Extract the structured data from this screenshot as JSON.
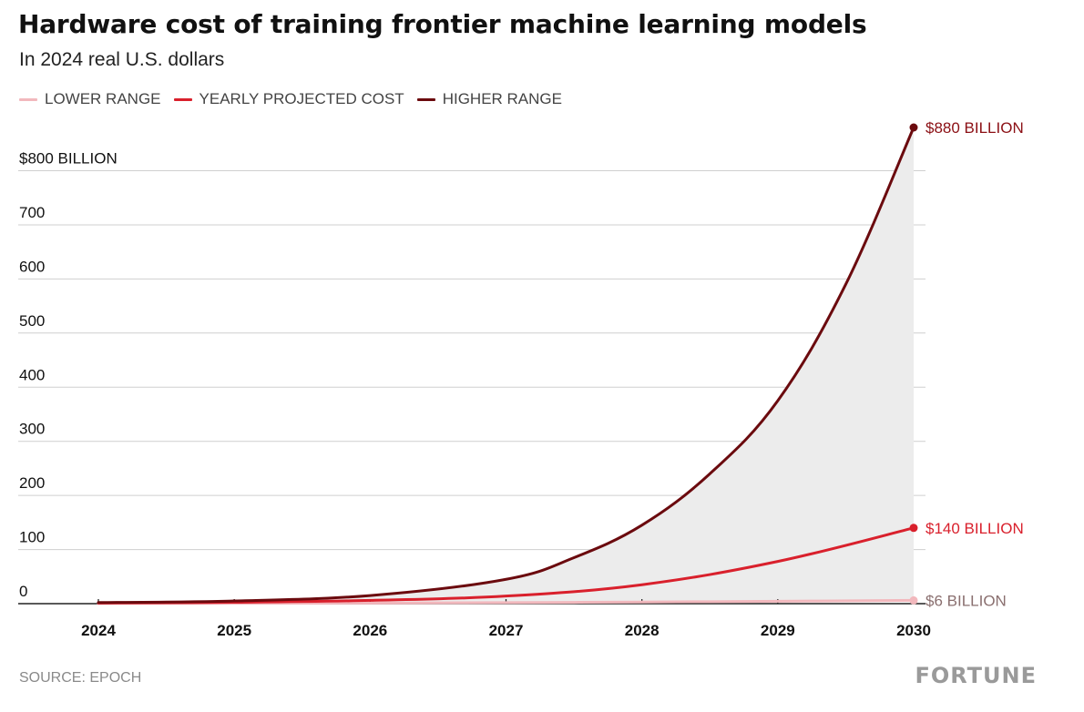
{
  "header": {
    "title": "Hardware cost of training frontier machine learning models",
    "subtitle": "In 2024 real U.S. dollars"
  },
  "legend": [
    {
      "label": "LOWER RANGE",
      "color": "#f2b8bd"
    },
    {
      "label": "YEARLY PROJECTED COST",
      "color": "#d9202c"
    },
    {
      "label": "HIGHER RANGE",
      "color": "#6b0a0e"
    }
  ],
  "chart_data": {
    "type": "line",
    "title": "Hardware cost of training frontier machine learning models",
    "subtitle": "In 2024 real U.S. dollars",
    "xlabel": "",
    "ylabel": "",
    "x": [
      2024,
      2025,
      2026,
      2027,
      2028,
      2029,
      2030
    ],
    "xlim": [
      2023.4,
      2030.1
    ],
    "ylim": [
      0,
      880
    ],
    "yticks": [
      0,
      100,
      200,
      300,
      400,
      500,
      600,
      700,
      800
    ],
    "ytick_labels": [
      "0",
      "100",
      "200",
      "300",
      "400",
      "500",
      "600",
      "700",
      "$800 BILLION"
    ],
    "xtick_labels": [
      "2024",
      "2025",
      "2026",
      "2027",
      "2028",
      "2029",
      "2030"
    ],
    "grid": true,
    "series": [
      {
        "name": "LOWER RANGE",
        "color": "#f2b8bd",
        "x": [
          2024,
          2025,
          2026,
          2027,
          2028,
          2029,
          2030
        ],
        "values": [
          0.3,
          0.6,
          1.1,
          1.9,
          3.0,
          4.4,
          6
        ]
      },
      {
        "name": "YEARLY PROJECTED COST",
        "color": "#d9202c",
        "x": [
          2024,
          2025,
          2026,
          2027,
          2028,
          2029,
          2030
        ],
        "values": [
          1,
          2.5,
          6,
          14,
          35,
          78,
          140
        ]
      },
      {
        "name": "HIGHER RANGE",
        "color": "#6b0a0e",
        "x": [
          2024,
          2025,
          2026,
          2027,
          2027.5,
          2028,
          2028.5,
          2029,
          2029.5,
          2030
        ],
        "values": [
          2,
          5,
          15,
          45,
          85,
          145,
          240,
          375,
          590,
          880
        ]
      }
    ],
    "shaded_band": {
      "between": [
        "LOWER RANGE",
        "HIGHER RANGE"
      ],
      "color": "#ececec"
    },
    "end_labels": [
      {
        "series": "HIGHER RANGE",
        "text": "$880 BILLION",
        "color": "#8b0f14"
      },
      {
        "series": "YEARLY PROJECTED COST",
        "text": "$140 BILLION",
        "color": "#d9202c"
      },
      {
        "series": "LOWER RANGE",
        "text": "$6 BILLION",
        "color": "#8a6f6f"
      }
    ]
  },
  "footer": {
    "source": "SOURCE: EPOCH",
    "brand": "FORTUNE"
  }
}
